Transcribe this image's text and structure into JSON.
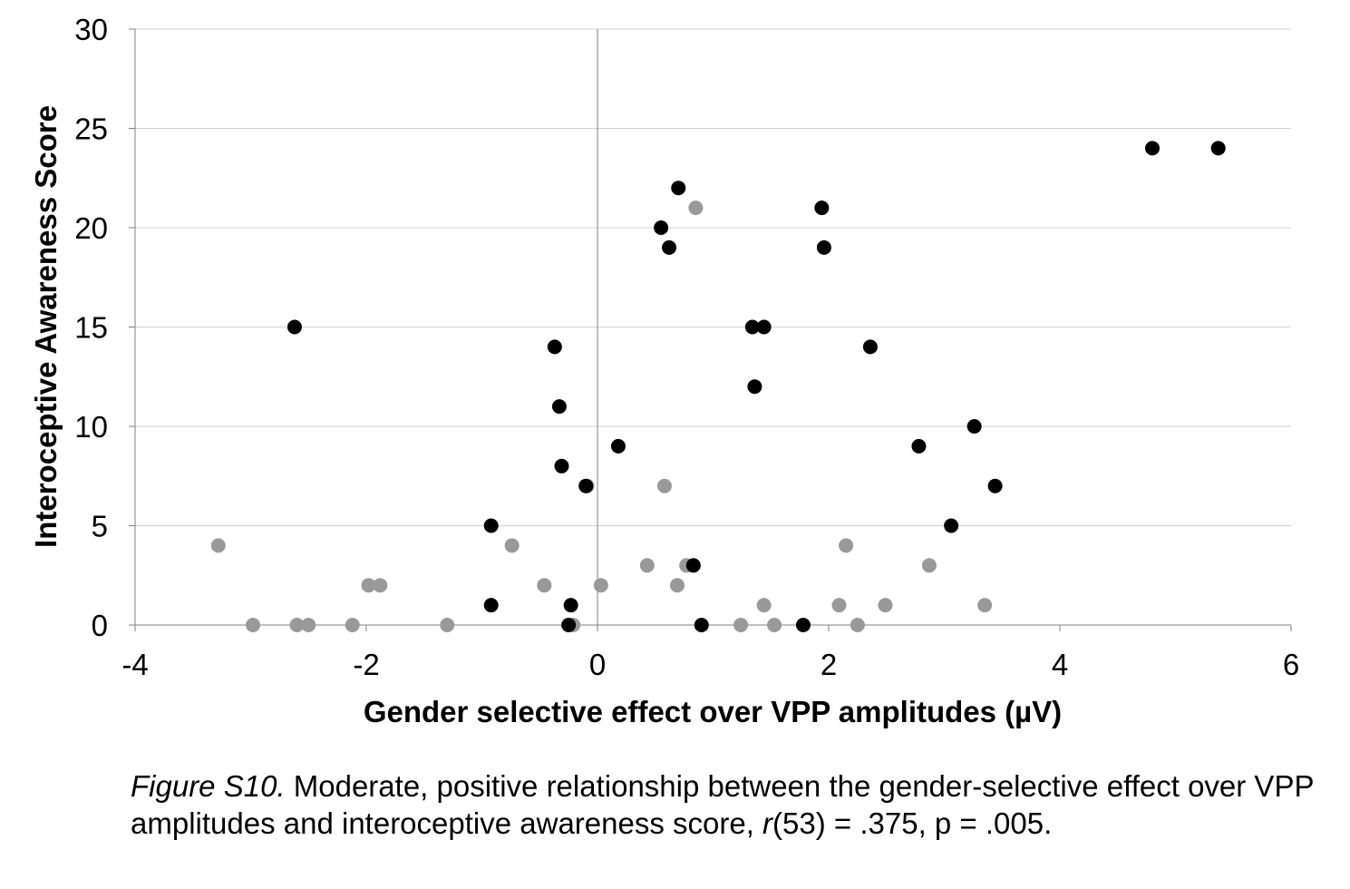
{
  "chart_data": {
    "type": "scatter",
    "xlabel": "Gender selective effect over VPP amplitudes  (µV)",
    "ylabel": "Interoceptive Awareness Score",
    "xlim": [
      -4,
      6
    ],
    "ylim": [
      0,
      30
    ],
    "x_ticks": [
      -4,
      -2,
      0,
      2,
      4,
      6
    ],
    "y_ticks": [
      0,
      5,
      10,
      15,
      20,
      25,
      30
    ],
    "grid": "horizontal",
    "legend": "none",
    "series": [
      {
        "color": "#000000",
        "points": [
          [
            -2.62,
            15
          ],
          [
            -0.37,
            14
          ],
          [
            -0.33,
            11
          ],
          [
            -0.31,
            8
          ],
          [
            -0.92,
            5
          ],
          [
            -0.92,
            1
          ],
          [
            -0.23,
            1
          ],
          [
            -0.25,
            0
          ],
          [
            -0.1,
            7
          ],
          [
            0.18,
            9
          ],
          [
            0.55,
            20
          ],
          [
            0.62,
            19
          ],
          [
            0.7,
            22
          ],
          [
            0.83,
            3
          ],
          [
            0.9,
            0
          ],
          [
            1.34,
            15
          ],
          [
            1.44,
            15
          ],
          [
            1.36,
            12
          ],
          [
            1.78,
            0
          ],
          [
            1.94,
            21
          ],
          [
            1.96,
            19
          ],
          [
            2.36,
            14
          ],
          [
            2.78,
            9
          ],
          [
            3.06,
            5
          ],
          [
            3.26,
            10
          ],
          [
            3.44,
            7
          ],
          [
            4.8,
            24
          ],
          [
            5.37,
            24
          ]
        ]
      },
      {
        "color": "#999999",
        "points": [
          [
            -3.28,
            4
          ],
          [
            -2.98,
            0
          ],
          [
            -2.6,
            0
          ],
          [
            -2.5,
            0
          ],
          [
            -2.12,
            0
          ],
          [
            -1.98,
            2
          ],
          [
            -1.88,
            2
          ],
          [
            -1.3,
            0
          ],
          [
            -0.74,
            4
          ],
          [
            -0.46,
            2
          ],
          [
            -0.21,
            0
          ],
          [
            -0.09,
            7
          ],
          [
            0.03,
            2
          ],
          [
            0.43,
            3
          ],
          [
            0.58,
            7
          ],
          [
            0.69,
            2
          ],
          [
            0.77,
            3
          ],
          [
            0.85,
            21
          ],
          [
            1.24,
            0
          ],
          [
            1.44,
            1
          ],
          [
            1.53,
            0
          ],
          [
            2.09,
            1
          ],
          [
            2.15,
            4
          ],
          [
            2.25,
            0
          ],
          [
            2.49,
            1
          ],
          [
            2.87,
            3
          ],
          [
            3.35,
            1
          ]
        ]
      }
    ]
  },
  "caption": {
    "figure_label": "Figure S10.",
    "text_part1": " Moderate, positive relationship between the gender-selective effect over VPP amplitudes and interoceptive awareness score, ",
    "r_symbol": "r",
    "text_part2": "(53) = .375, p = .005."
  }
}
